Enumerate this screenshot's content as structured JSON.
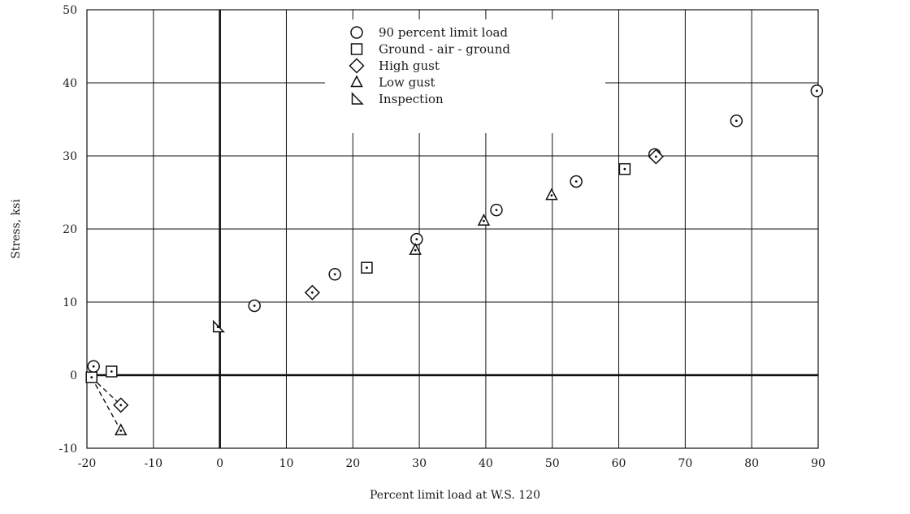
{
  "chart_data": {
    "type": "scatter",
    "title": "",
    "xlabel": "Percent limit load at W.S. 120",
    "ylabel": "Stress, ksi",
    "xlim": [
      -20,
      90
    ],
    "ylim": [
      -10,
      50
    ],
    "xticks": [
      -20,
      -10,
      0,
      10,
      20,
      30,
      40,
      50,
      60,
      70,
      80,
      90
    ],
    "yticks": [
      -10,
      0,
      10,
      20,
      30,
      40,
      50
    ],
    "x_tick_labels": [
      "-20",
      "-10",
      "0",
      "10",
      "20",
      "30",
      "40",
      "50",
      "60",
      "70",
      "80",
      "90"
    ],
    "y_tick_labels": [
      "-10",
      "0",
      "10",
      "20",
      "30",
      "40",
      "50"
    ],
    "grid": true,
    "legend_position": "top-center",
    "series": [
      {
        "name": "90 percent limit load",
        "marker": "circle",
        "points": [
          [
            -19,
            1.2
          ],
          [
            5.2,
            9.5
          ],
          [
            17.3,
            13.8
          ],
          [
            29.6,
            18.6
          ],
          [
            41.6,
            22.6
          ],
          [
            53.6,
            26.5
          ],
          [
            65.4,
            30.2
          ],
          [
            77.7,
            34.8
          ],
          [
            89.8,
            38.9
          ]
        ]
      },
      {
        "name": "Ground - air - ground",
        "marker": "square",
        "points": [
          [
            -19.3,
            -0.3
          ],
          [
            -16.3,
            0.5
          ],
          [
            22.1,
            14.7
          ],
          [
            60.9,
            28.2
          ]
        ]
      },
      {
        "name": "High gust",
        "marker": "diamond",
        "points": [
          [
            -14.9,
            -4.1
          ],
          [
            13.9,
            11.3
          ],
          [
            65.6,
            29.9
          ]
        ]
      },
      {
        "name": "Low gust",
        "marker": "triangle",
        "points": [
          [
            -14.9,
            -7.6
          ],
          [
            29.4,
            17.1
          ],
          [
            39.7,
            21.1
          ],
          [
            49.9,
            24.6
          ]
        ]
      },
      {
        "name": "Inspection",
        "marker": "right-triangle",
        "points": [
          [
            -0.3,
            6.6
          ]
        ]
      }
    ],
    "dashed_lines": [
      {
        "from": [
          -19.3,
          -0.3
        ],
        "to": [
          -14.9,
          -4.1
        ]
      },
      {
        "from": [
          -19.3,
          -0.3
        ],
        "to": [
          -14.9,
          -7.6
        ]
      }
    ]
  }
}
